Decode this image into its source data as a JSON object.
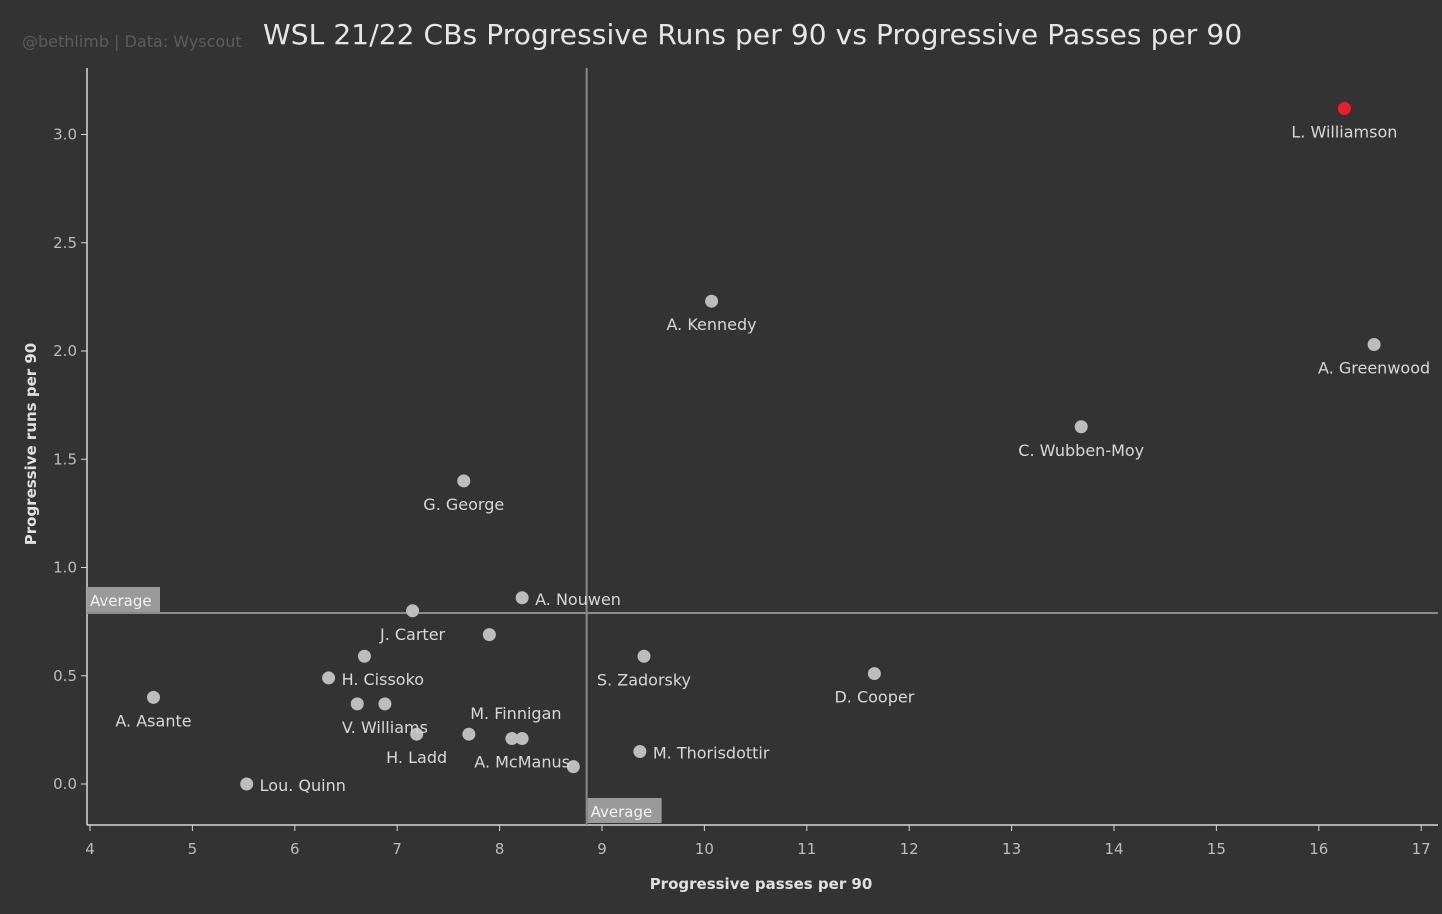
{
  "header": {
    "credit": "@bethlimb | Data: Wyscout",
    "title": "WSL 21/22 CBs Progressive Runs per 90 vs Progressive Passes per 90"
  },
  "colors": {
    "background": "#333333",
    "point": "#bdbdbd",
    "highlight": "#e8202a",
    "reference_line": "#8a8a8a"
  },
  "chart_data": {
    "type": "scatter",
    "title": "WSL 21/22 CBs Progressive Runs per 90 vs Progressive Passes per 90",
    "xlabel": "Progressive passes per 90",
    "ylabel": "Progressive runs per 90",
    "xlim": [
      4,
      17
    ],
    "ylim": [
      -0.2,
      3.2
    ],
    "xticks": [
      4,
      5,
      6,
      7,
      8,
      9,
      10,
      11,
      12,
      13,
      14,
      15,
      16,
      17
    ],
    "yticks": [
      0.0,
      0.5,
      1.0,
      1.5,
      2.0,
      2.5,
      3.0
    ],
    "grid": false,
    "reference_lines": {
      "x_average": 8.85,
      "y_average": 0.79,
      "label": "Average"
    },
    "points": [
      {
        "name": "L. Williamson",
        "x": 16.25,
        "y": 3.12,
        "highlight": true,
        "label_pos": "below"
      },
      {
        "name": "A. Kennedy",
        "x": 10.07,
        "y": 2.23,
        "label_pos": "below"
      },
      {
        "name": "A. Greenwood",
        "x": 16.54,
        "y": 2.03,
        "label_pos": "below"
      },
      {
        "name": "C. Wubben-Moy",
        "x": 13.68,
        "y": 1.65,
        "label_pos": "below"
      },
      {
        "name": "G. George",
        "x": 7.65,
        "y": 1.4,
        "label_pos": "below"
      },
      {
        "name": "A. Nouwen",
        "x": 8.22,
        "y": 0.86,
        "label_pos": "right"
      },
      {
        "name": "J. Carter",
        "x": 7.15,
        "y": 0.8,
        "label_pos": "below"
      },
      {
        "name": "",
        "x": 7.9,
        "y": 0.69
      },
      {
        "name": "",
        "x": 6.68,
        "y": 0.59
      },
      {
        "name": "S. Zadorsky",
        "x": 9.41,
        "y": 0.59,
        "label_pos": "below"
      },
      {
        "name": "D. Cooper",
        "x": 11.66,
        "y": 0.51,
        "label_pos": "below"
      },
      {
        "name": "H. Cissoko",
        "x": 6.33,
        "y": 0.49,
        "label_pos": "right"
      },
      {
        "name": "A. Asante",
        "x": 4.62,
        "y": 0.4,
        "label_pos": "below"
      },
      {
        "name": "",
        "x": 6.61,
        "y": 0.37
      },
      {
        "name": "V. Williams",
        "x": 6.88,
        "y": 0.37,
        "label_pos": "below"
      },
      {
        "name": "H. Ladd",
        "x": 7.19,
        "y": 0.23,
        "label_pos": "below"
      },
      {
        "name": "M. Finnigan",
        "x": 7.7,
        "y": 0.23,
        "label_pos": "above"
      },
      {
        "name": "",
        "x": 8.12,
        "y": 0.21
      },
      {
        "name": "A. McManus",
        "x": 8.22,
        "y": 0.21,
        "label_pos": "below"
      },
      {
        "name": "M. Thorisdottir",
        "x": 9.37,
        "y": 0.15,
        "label_pos": "right"
      },
      {
        "name": "",
        "x": 8.72,
        "y": 0.08
      },
      {
        "name": "Lou. Quinn",
        "x": 5.53,
        "y": 0.0,
        "label_pos": "right"
      }
    ]
  }
}
